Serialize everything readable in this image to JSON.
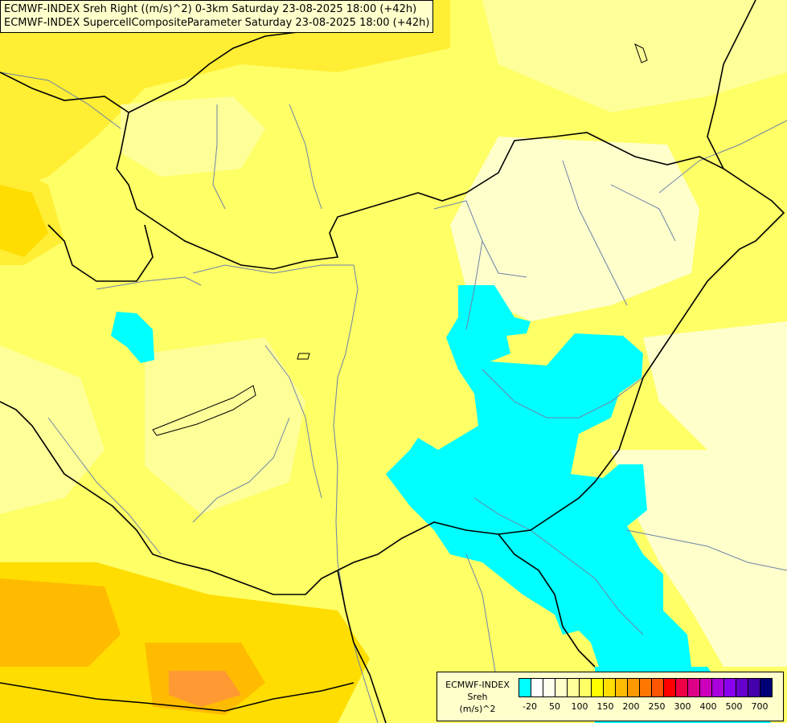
{
  "title": {
    "line1": "ECMWF-INDEX Sreh Right ((m/s)^2) 0-3km Saturday 23-08-2025 18:00 (+42h)",
    "line2": "ECMWF-INDEX SupercellCompositeParameter Saturday 23-08-2025 18:00 (+42h)"
  },
  "legend": {
    "model": "ECMWF-INDEX",
    "param": "Sreh",
    "unit": "(m/s)^2",
    "colors": [
      "#00ffff",
      "#ffffff",
      "#ffffee",
      "#ffffcc",
      "#ffff99",
      "#ffff66",
      "#ffff00",
      "#ffdd00",
      "#ffbb00",
      "#ff9900",
      "#ff7700",
      "#ff5500",
      "#ff0000",
      "#ee0044",
      "#dd0088",
      "#cc00bb",
      "#aa00dd",
      "#8800ee",
      "#6600cc",
      "#4400aa",
      "#000077"
    ],
    "tick_labels": [
      "-20",
      "50",
      "100",
      "150",
      "200",
      "250",
      "300",
      "400",
      "500",
      "700"
    ]
  },
  "map_colors": {
    "cyan": "#00ffff",
    "pale": "#ffffcc",
    "light": "#ffff99",
    "yellow": "#ffff66",
    "gold": "#ffee33",
    "orange1": "#ffdd00",
    "orange2": "#ffbb00",
    "orange3": "#ff9933"
  }
}
